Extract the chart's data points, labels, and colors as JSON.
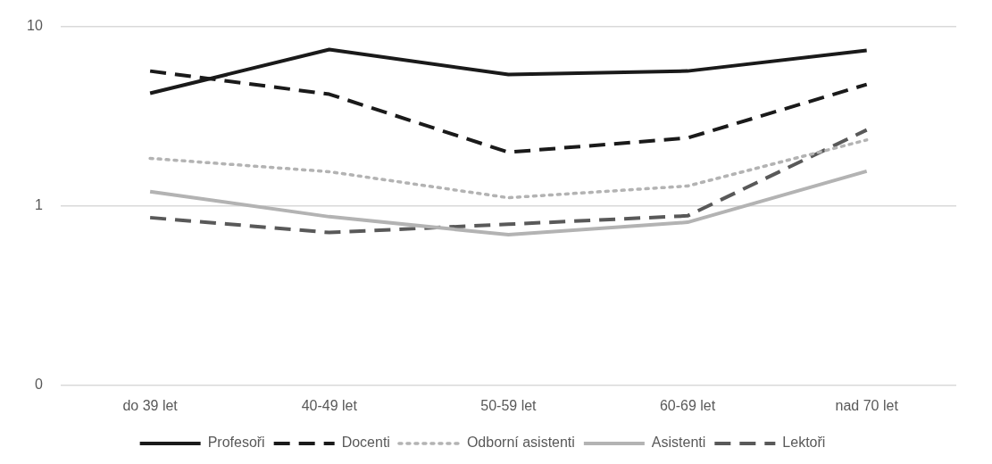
{
  "chart_data": {
    "type": "line",
    "categories": [
      "do 39 let",
      "40-49 let",
      "50-59 let",
      "60-69 let",
      "nad 70 let"
    ],
    "series": [
      {
        "name": "Profesoři",
        "color": "#1a1a1a",
        "line_style": "solid",
        "values": [
          4.24,
          7.43,
          5.39,
          5.64,
          7.34
        ]
      },
      {
        "name": "Docenti",
        "color": "#1a1a1a",
        "line_style": "dashed",
        "values": [
          5.64,
          4.19,
          1.99,
          2.39,
          4.75
        ]
      },
      {
        "name": "Odborní asistenti",
        "color": "#b3b3b3",
        "line_style": "dotted",
        "values": [
          1.84,
          1.55,
          1.11,
          1.29,
          2.33
        ]
      },
      {
        "name": "Asistenti",
        "color": "#b3b3b3",
        "line_style": "solid",
        "values": [
          1.2,
          0.87,
          0.69,
          0.81,
          1.56
        ]
      },
      {
        "name": "Lektoři",
        "color": "#595959",
        "line_style": "dashed",
        "values": [
          0.86,
          0.71,
          0.79,
          0.88,
          2.65
        ]
      }
    ],
    "log": "y",
    "ylim": [
      0.1,
      10
    ],
    "yticks": [
      {
        "value": 0.1,
        "label": "0"
      },
      1,
      10
    ],
    "grid": "y",
    "legend": "bottom",
    "marker": "none"
  }
}
